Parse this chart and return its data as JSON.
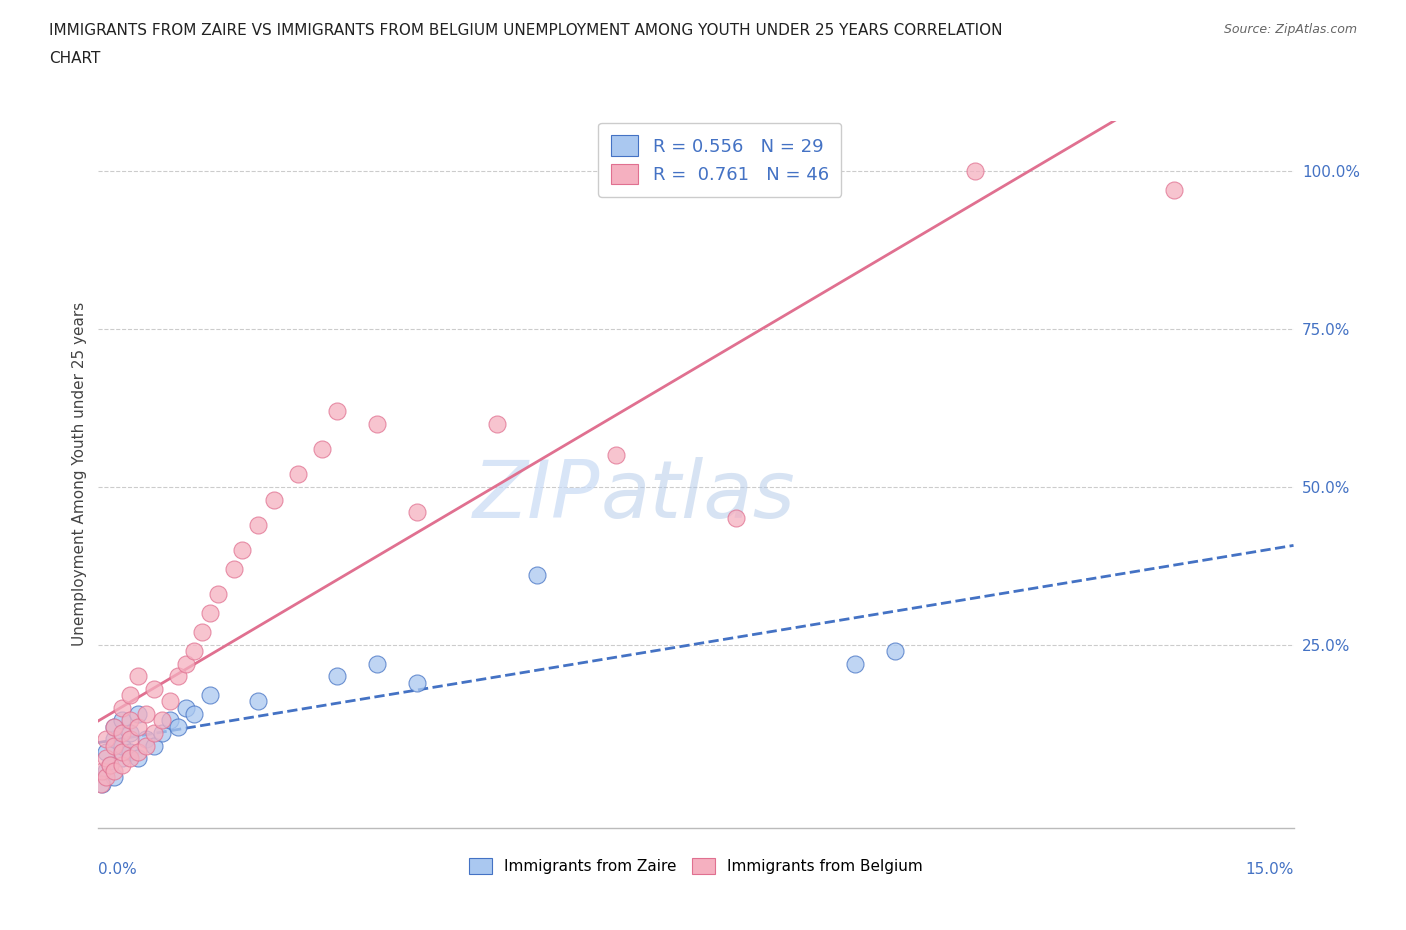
{
  "title_line1": "IMMIGRANTS FROM ZAIRE VS IMMIGRANTS FROM BELGIUM UNEMPLOYMENT AMONG YOUTH UNDER 25 YEARS CORRELATION",
  "title_line2": "CHART",
  "source_text": "Source: ZipAtlas.com",
  "ylabel": "Unemployment Among Youth under 25 years",
  "ylabel_right_ticks": [
    0.25,
    0.5,
    0.75,
    1.0
  ],
  "ylabel_right_labels": [
    "25.0%",
    "50.0%",
    "75.0%",
    "100.0%"
  ],
  "xlim": [
    0.0,
    0.15
  ],
  "ylim": [
    -0.04,
    1.08
  ],
  "watermark_zip": "ZIP",
  "watermark_atlas": "atlas",
  "legend_zaire_r": "0.556",
  "legend_zaire_n": "29",
  "legend_belgium_r": "0.761",
  "legend_belgium_n": "46",
  "zaire_color": "#aac8f0",
  "belgium_color": "#f5b0c0",
  "zaire_edge_color": "#4472c4",
  "belgium_edge_color": "#e07090",
  "zaire_line_color": "#4472c4",
  "belgium_line_color": "#e07090",
  "background_color": "#ffffff",
  "grid_color": "#cccccc",
  "zaire_x": [
    0.0005,
    0.001,
    0.001,
    0.0015,
    0.002,
    0.002,
    0.002,
    0.003,
    0.003,
    0.003,
    0.004,
    0.004,
    0.005,
    0.005,
    0.006,
    0.007,
    0.008,
    0.009,
    0.01,
    0.011,
    0.012,
    0.014,
    0.02,
    0.03,
    0.035,
    0.04,
    0.055,
    0.095,
    0.1
  ],
  "zaire_y": [
    0.03,
    0.05,
    0.08,
    0.06,
    0.04,
    0.1,
    0.12,
    0.07,
    0.09,
    0.13,
    0.08,
    0.11,
    0.07,
    0.14,
    0.1,
    0.09,
    0.11,
    0.13,
    0.12,
    0.15,
    0.14,
    0.17,
    0.16,
    0.2,
    0.22,
    0.19,
    0.36,
    0.22,
    0.24
  ],
  "belgium_x": [
    0.0003,
    0.0005,
    0.001,
    0.001,
    0.001,
    0.0015,
    0.002,
    0.002,
    0.002,
    0.003,
    0.003,
    0.003,
    0.003,
    0.004,
    0.004,
    0.004,
    0.004,
    0.005,
    0.005,
    0.005,
    0.006,
    0.006,
    0.007,
    0.007,
    0.008,
    0.009,
    0.01,
    0.011,
    0.012,
    0.013,
    0.014,
    0.015,
    0.017,
    0.018,
    0.02,
    0.022,
    0.025,
    0.028,
    0.03,
    0.035,
    0.04,
    0.05,
    0.065,
    0.08,
    0.11,
    0.135
  ],
  "belgium_y": [
    0.03,
    0.05,
    0.04,
    0.07,
    0.1,
    0.06,
    0.05,
    0.09,
    0.12,
    0.06,
    0.08,
    0.11,
    0.15,
    0.07,
    0.1,
    0.13,
    0.17,
    0.08,
    0.12,
    0.2,
    0.09,
    0.14,
    0.11,
    0.18,
    0.13,
    0.16,
    0.2,
    0.22,
    0.24,
    0.27,
    0.3,
    0.33,
    0.37,
    0.4,
    0.44,
    0.48,
    0.52,
    0.56,
    0.62,
    0.6,
    0.46,
    0.6,
    0.55,
    0.45,
    1.0,
    0.97
  ]
}
